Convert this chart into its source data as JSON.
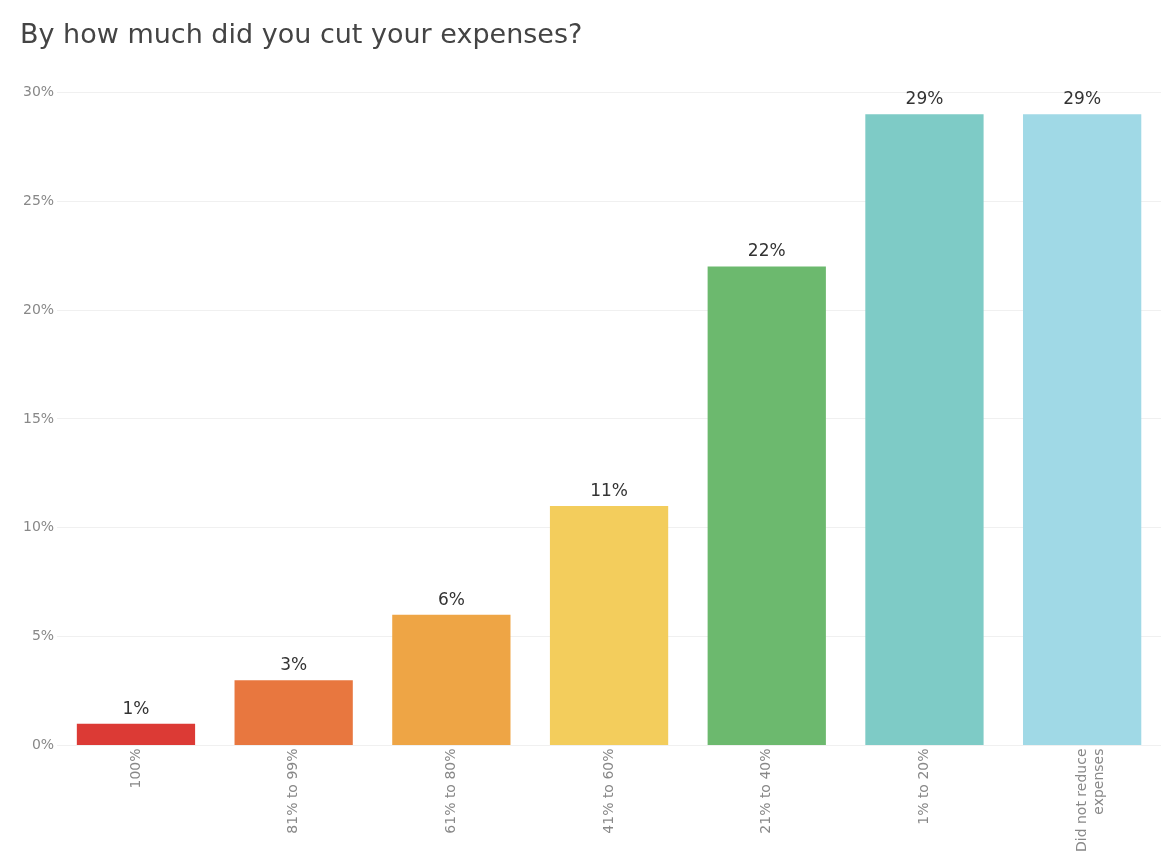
{
  "chart_data": {
    "type": "bar",
    "title": "By how much did you cut your expenses?",
    "categories": [
      "100%",
      "81% to 99%",
      "61% to 80%",
      "41% to 60%",
      "21% to 40%",
      "1% to 20%",
      "Did not reduce expenses"
    ],
    "values": [
      1,
      3,
      6,
      11,
      22,
      29,
      29
    ],
    "colors": [
      "#dc3a35",
      "#e8773f",
      "#eea545",
      "#f3cd5c",
      "#6cb96e",
      "#7ecbc6",
      "#a0d9e6"
    ],
    "ylim": [
      0,
      30
    ],
    "yticks": [
      {
        "value": 0,
        "label": "0%"
      },
      {
        "value": 5,
        "label": "5%"
      },
      {
        "value": 10,
        "label": "10%"
      },
      {
        "value": 15,
        "label": "15%"
      },
      {
        "value": 20,
        "label": "20%"
      },
      {
        "value": 25,
        "label": "25%"
      },
      {
        "value": 30,
        "label": "30%"
      }
    ],
    "value_labels": [
      "1%",
      "3%",
      "6%",
      "11%",
      "22%",
      "29%",
      "29%"
    ],
    "grid": "y",
    "legend": false
  }
}
